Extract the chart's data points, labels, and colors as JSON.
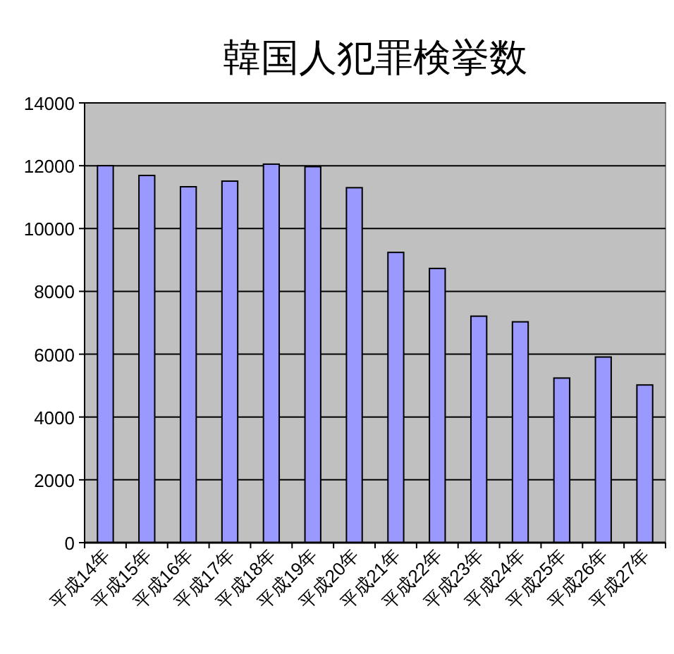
{
  "chart_data": {
    "type": "bar",
    "title": "韓国人犯罪検挙数",
    "categories": [
      "平成14年",
      "平成15年",
      "平成16年",
      "平成17年",
      "平成18年",
      "平成19年",
      "平成20年",
      "平成21年",
      "平成22年",
      "平成23年",
      "平成24年",
      "平成25年",
      "平成26年",
      "平成27年"
    ],
    "values": [
      12000,
      11690,
      11330,
      11510,
      12050,
      11970,
      11300,
      9240,
      8730,
      7210,
      7030,
      5240,
      5910,
      5020
    ],
    "color": "#9999ff",
    "ylim": [
      0,
      14000
    ],
    "yticks": [
      0,
      2000,
      4000,
      6000,
      8000,
      10000,
      12000,
      14000
    ],
    "grid": "y"
  }
}
